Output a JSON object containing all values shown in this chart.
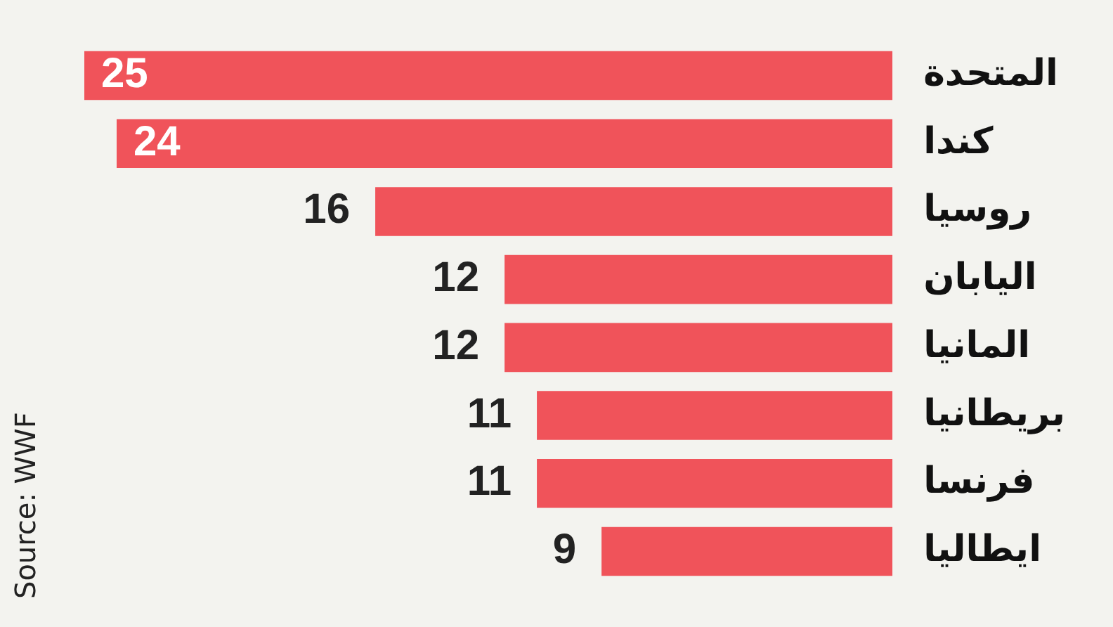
{
  "chart_data": {
    "type": "bar",
    "orientation": "horizontal",
    "categories": [
      "المتحدة",
      "كندا",
      "روسيا",
      "اليابان",
      "المانيا",
      "بريطانيا",
      "فرنسا",
      "ايطاليا"
    ],
    "values": [
      25,
      24,
      16,
      12,
      12,
      11,
      11,
      9
    ],
    "color": "#f0535a",
    "data_labels": true,
    "legend": false,
    "annotations": [
      "Source: WWF"
    ]
  }
}
